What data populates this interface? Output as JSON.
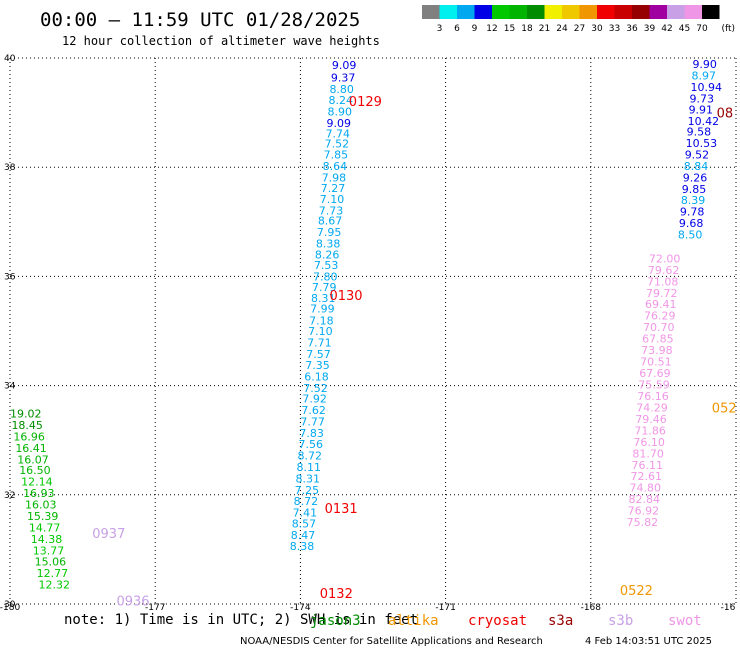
{
  "chart_data": {
    "type": "scatter",
    "title": "00:00 – 11:59 UTC 01/28/2025",
    "subtitle": "12 hour collection of altimeter wave heights",
    "x_ticks": [
      "-180",
      "-177",
      "-174",
      "-171",
      "-168",
      "-16"
    ],
    "y_ticks": [
      "40",
      "38",
      "36",
      "34",
      "32",
      "30"
    ],
    "xlim": [
      -180,
      -165
    ],
    "ylim": [
      30,
      40
    ],
    "grid": true,
    "colorbar": {
      "unit": "(ft)",
      "labels": [
        "3",
        "6",
        "9",
        "12",
        "15",
        "18",
        "21",
        "24",
        "27",
        "30",
        "33",
        "36",
        "39",
        "42",
        "45",
        "70"
      ],
      "colors": [
        "#808080",
        "#00f0f0",
        "#00a8f0",
        "#0000e6",
        "#00c800",
        "#00b400",
        "#008c00",
        "#f0f000",
        "#f0c800",
        "#f09600",
        "#f00000",
        "#c80000",
        "#960000",
        "#a000a0",
        "#c8a0e6",
        "#f096e6",
        "#000000"
      ]
    },
    "time_labels": [
      {
        "text": "0129",
        "x": -173.0,
        "y": 39.21,
        "color": "#f00000"
      },
      {
        "text": "0130",
        "x": -173.4,
        "y": 35.66,
        "color": "#f00000"
      },
      {
        "text": "0131",
        "x": -173.5,
        "y": 31.76,
        "color": "#f00000"
      },
      {
        "text": "0132",
        "x": -173.6,
        "y": 30.2,
        "color": "#f00000"
      },
      {
        "text": "0937",
        "x": -178.3,
        "y": 31.3,
        "color": "#c8a0e6"
      },
      {
        "text": "0936",
        "x": -177.8,
        "y": 30.06,
        "color": "#c8a0e6"
      },
      {
        "text": "0522",
        "x": -167.4,
        "y": 30.26,
        "color": "#f09600"
      },
      {
        "text": "052",
        "x": -165.5,
        "y": 33.6,
        "color": "#f09600"
      },
      {
        "text": "08",
        "x": -165.4,
        "y": 39.0,
        "color": "#960000"
      }
    ],
    "series": [
      {
        "name": "jason3",
        "points": [
          {
            "x": -173.35,
            "y": 39.87,
            "v": "9.09",
            "c": "#0000e6"
          },
          {
            "x": -173.37,
            "y": 39.64,
            "v": "9.37",
            "c": "#0000e6"
          },
          {
            "x": -173.4,
            "y": 39.43,
            "v": "8.80",
            "c": "#00a8f0"
          },
          {
            "x": -173.42,
            "y": 39.23,
            "v": "8.24",
            "c": "#00a8f0"
          },
          {
            "x": -173.44,
            "y": 39.02,
            "v": "8.90",
            "c": "#00a8f0"
          },
          {
            "x": -173.46,
            "y": 38.81,
            "v": "9.09",
            "c": "#0000e6"
          },
          {
            "x": -173.48,
            "y": 38.62,
            "v": "7.74",
            "c": "#00a8f0"
          },
          {
            "x": -173.5,
            "y": 38.43,
            "v": "7.52",
            "c": "#00a8f0"
          },
          {
            "x": -173.52,
            "y": 38.23,
            "v": "7.85",
            "c": "#00a8f0"
          },
          {
            "x": -173.54,
            "y": 38.02,
            "v": "8.64",
            "c": "#00a8f0"
          },
          {
            "x": -173.56,
            "y": 37.81,
            "v": "7.98",
            "c": "#00a8f0"
          },
          {
            "x": -173.58,
            "y": 37.62,
            "v": "7.27",
            "c": "#00a8f0"
          },
          {
            "x": -173.6,
            "y": 37.42,
            "v": "7.10",
            "c": "#00a8f0"
          },
          {
            "x": -173.62,
            "y": 37.21,
            "v": "7.73",
            "c": "#00a8f0"
          },
          {
            "x": -173.64,
            "y": 37.02,
            "v": "8.67",
            "c": "#00a8f0"
          },
          {
            "x": -173.66,
            "y": 36.81,
            "v": "7.95",
            "c": "#00a8f0"
          },
          {
            "x": -173.68,
            "y": 36.6,
            "v": "8.38",
            "c": "#00a8f0"
          },
          {
            "x": -173.7,
            "y": 36.4,
            "v": "8.26",
            "c": "#00a8f0"
          },
          {
            "x": -173.72,
            "y": 36.21,
            "v": "7.53",
            "c": "#00a8f0"
          },
          {
            "x": -173.74,
            "y": 36.0,
            "v": "7.80",
            "c": "#00a8f0"
          },
          {
            "x": -173.76,
            "y": 35.81,
            "v": "7.79",
            "c": "#00a8f0"
          },
          {
            "x": -173.78,
            "y": 35.6,
            "v": "8.31",
            "c": "#00a8f0"
          },
          {
            "x": -173.8,
            "y": 35.41,
            "v": "7.99",
            "c": "#00a8f0"
          },
          {
            "x": -173.82,
            "y": 35.19,
            "v": "7.18",
            "c": "#00a8f0"
          },
          {
            "x": -173.84,
            "y": 35.0,
            "v": "7.10",
            "c": "#00a8f0"
          },
          {
            "x": -173.86,
            "y": 34.79,
            "v": "7.71",
            "c": "#00a8f0"
          },
          {
            "x": -173.88,
            "y": 34.58,
            "v": "7.57",
            "c": "#00a8f0"
          },
          {
            "x": -173.9,
            "y": 34.38,
            "v": "7.35",
            "c": "#00a8f0"
          },
          {
            "x": -173.92,
            "y": 34.17,
            "v": "6.18",
            "c": "#00a8f0"
          },
          {
            "x": -173.94,
            "y": 33.96,
            "v": "7.52",
            "c": "#00a8f0"
          },
          {
            "x": -173.96,
            "y": 33.76,
            "v": "7.92",
            "c": "#00a8f0"
          },
          {
            "x": -173.98,
            "y": 33.55,
            "v": "7.62",
            "c": "#00a8f0"
          },
          {
            "x": -174.0,
            "y": 33.34,
            "v": "7.77",
            "c": "#00a8f0"
          },
          {
            "x": -174.02,
            "y": 33.13,
            "v": "7.83",
            "c": "#00a8f0"
          },
          {
            "x": -174.04,
            "y": 32.93,
            "v": "7.56",
            "c": "#00a8f0"
          },
          {
            "x": -174.06,
            "y": 32.72,
            "v": "8.72",
            "c": "#00a8f0"
          },
          {
            "x": -174.08,
            "y": 32.51,
            "v": "8.11",
            "c": "#00a8f0"
          },
          {
            "x": -174.1,
            "y": 32.3,
            "v": "8.31",
            "c": "#00a8f0"
          },
          {
            "x": -174.12,
            "y": 32.09,
            "v": "7.25",
            "c": "#00a8f0"
          },
          {
            "x": -174.14,
            "y": 31.89,
            "v": "8.72",
            "c": "#00a8f0"
          },
          {
            "x": -174.16,
            "y": 31.68,
            "v": "7.41",
            "c": "#00a8f0"
          },
          {
            "x": -174.18,
            "y": 31.47,
            "v": "8.57",
            "c": "#00a8f0"
          },
          {
            "x": -174.2,
            "y": 31.26,
            "v": "8.47",
            "c": "#00a8f0"
          },
          {
            "x": -174.22,
            "y": 31.06,
            "v": "8.38",
            "c": "#00a8f0"
          }
        ]
      },
      {
        "name": "swot",
        "points": [
          {
            "x": -180.0,
            "y": 33.49,
            "v": "19.02",
            "c": "#008c00"
          },
          {
            "x": -179.97,
            "y": 33.28,
            "v": "18.45",
            "c": "#008c00"
          },
          {
            "x": -179.93,
            "y": 33.07,
            "v": "16.96",
            "c": "#00b400"
          },
          {
            "x": -179.89,
            "y": 32.86,
            "v": "16.41",
            "c": "#00b400"
          },
          {
            "x": -179.85,
            "y": 32.65,
            "v": "16.07",
            "c": "#00b400"
          },
          {
            "x": -179.81,
            "y": 32.45,
            "v": "16.50",
            "c": "#00b400"
          },
          {
            "x": -179.77,
            "y": 32.24,
            "v": "12.14",
            "c": "#00c800"
          },
          {
            "x": -179.73,
            "y": 32.03,
            "v": "16.93",
            "c": "#00b400"
          },
          {
            "x": -179.69,
            "y": 31.82,
            "v": "16.03",
            "c": "#00b400"
          },
          {
            "x": -179.65,
            "y": 31.61,
            "v": "15.39",
            "c": "#00b400"
          },
          {
            "x": -179.61,
            "y": 31.4,
            "v": "14.77",
            "c": "#00c800"
          },
          {
            "x": -179.57,
            "y": 31.19,
            "v": "14.38",
            "c": "#00c800"
          },
          {
            "x": -179.53,
            "y": 30.98,
            "v": "13.77",
            "c": "#00c800"
          },
          {
            "x": -179.49,
            "y": 30.78,
            "v": "15.06",
            "c": "#00b400"
          },
          {
            "x": -179.45,
            "y": 30.57,
            "v": "12.77",
            "c": "#00c800"
          },
          {
            "x": -179.41,
            "y": 30.36,
            "v": "12.32",
            "c": "#00c800"
          }
        ]
      },
      {
        "name": "s3b",
        "points": [
          {
            "x": -165.9,
            "y": 39.89,
            "v": "9.90",
            "c": "#0000e6"
          },
          {
            "x": -165.92,
            "y": 39.68,
            "v": "8.97",
            "c": "#00a8f0"
          },
          {
            "x": -165.94,
            "y": 39.47,
            "v": "10.94",
            "c": "#0000e6"
          },
          {
            "x": -165.96,
            "y": 39.26,
            "v": "9.73",
            "c": "#0000e6"
          },
          {
            "x": -165.98,
            "y": 39.06,
            "v": "9.91",
            "c": "#0000e6"
          },
          {
            "x": -166.0,
            "y": 38.85,
            "v": "10.42",
            "c": "#0000e6"
          },
          {
            "x": -166.02,
            "y": 38.65,
            "v": "9.58",
            "c": "#0000e6"
          },
          {
            "x": -166.04,
            "y": 38.44,
            "v": "10.53",
            "c": "#0000e6"
          },
          {
            "x": -166.06,
            "y": 38.23,
            "v": "9.52",
            "c": "#0000e6"
          },
          {
            "x": -166.08,
            "y": 38.02,
            "v": "8.84",
            "c": "#00a8f0"
          },
          {
            "x": -166.1,
            "y": 37.81,
            "v": "9.26",
            "c": "#0000e6"
          },
          {
            "x": -166.12,
            "y": 37.6,
            "v": "9.85",
            "c": "#0000e6"
          },
          {
            "x": -166.14,
            "y": 37.4,
            "v": "8.39",
            "c": "#00a8f0"
          },
          {
            "x": -166.16,
            "y": 37.19,
            "v": "9.78",
            "c": "#0000e6"
          },
          {
            "x": -166.18,
            "y": 36.98,
            "v": "9.68",
            "c": "#0000e6"
          },
          {
            "x": -166.2,
            "y": 36.77,
            "v": "8.50",
            "c": "#00a8f0"
          }
        ]
      },
      {
        "name": "cryosat",
        "points": [
          {
            "x": -166.8,
            "y": 36.33,
            "v": "72.00",
            "c": "#f096e6"
          },
          {
            "x": -166.82,
            "y": 36.12,
            "v": "79.62",
            "c": "#f096e6"
          },
          {
            "x": -166.84,
            "y": 35.91,
            "v": "71.08",
            "c": "#f096e6"
          },
          {
            "x": -166.86,
            "y": 35.7,
            "v": "79.72",
            "c": "#f096e6"
          },
          {
            "x": -166.88,
            "y": 35.49,
            "v": "69.41",
            "c": "#f096e6"
          },
          {
            "x": -166.9,
            "y": 35.28,
            "v": "76.29",
            "c": "#f096e6"
          },
          {
            "x": -166.92,
            "y": 35.07,
            "v": "70.70",
            "c": "#f096e6"
          },
          {
            "x": -166.94,
            "y": 34.86,
            "v": "67.85",
            "c": "#f096e6"
          },
          {
            "x": -166.96,
            "y": 34.65,
            "v": "73.98",
            "c": "#f096e6"
          },
          {
            "x": -166.98,
            "y": 34.44,
            "v": "70.51",
            "c": "#f096e6"
          },
          {
            "x": -167.0,
            "y": 34.23,
            "v": "67.69",
            "c": "#f096e6"
          },
          {
            "x": -167.02,
            "y": 34.02,
            "v": "75.59",
            "c": "#f096e6"
          },
          {
            "x": -167.04,
            "y": 33.81,
            "v": "76.16",
            "c": "#f096e6"
          },
          {
            "x": -167.06,
            "y": 33.6,
            "v": "74.29",
            "c": "#f096e6"
          },
          {
            "x": -167.08,
            "y": 33.39,
            "v": "79.46",
            "c": "#f096e6"
          },
          {
            "x": -167.1,
            "y": 33.18,
            "v": "71.86",
            "c": "#f096e6"
          },
          {
            "x": -167.12,
            "y": 32.97,
            "v": "76.10",
            "c": "#f096e6"
          },
          {
            "x": -167.14,
            "y": 32.76,
            "v": "81.70",
            "c": "#f096e6"
          },
          {
            "x": -167.16,
            "y": 32.55,
            "v": "76.11",
            "c": "#f096e6"
          },
          {
            "x": -167.18,
            "y": 32.34,
            "v": "72.61",
            "c": "#f096e6"
          },
          {
            "x": -167.2,
            "y": 32.13,
            "v": "74.80",
            "c": "#f096e6"
          },
          {
            "x": -167.22,
            "y": 31.92,
            "v": "82.84",
            "c": "#f096e6"
          },
          {
            "x": -167.24,
            "y": 31.71,
            "v": "76.92",
            "c": "#f096e6"
          },
          {
            "x": -167.26,
            "y": 31.5,
            "v": "75.82",
            "c": "#f096e6"
          }
        ]
      }
    ]
  },
  "legend": {
    "note": "note: 1) Time is in UTC; 2) SWH is in feet",
    "satellites": [
      {
        "name": "jason3",
        "color": "#008c00"
      },
      {
        "name": "altika",
        "color": "#f09600"
      },
      {
        "name": "cryosat",
        "color": "#f00000"
      },
      {
        "name": "s3a",
        "color": "#960000"
      },
      {
        "name": "s3b",
        "color": "#c8a0e6"
      },
      {
        "name": "swot",
        "color": "#f096e6"
      }
    ]
  },
  "footer": {
    "credit": "NOAA/NESDIS Center for Satellite Applications and Research",
    "timestamp": "4 Feb 14:03:51 UTC 2025"
  }
}
